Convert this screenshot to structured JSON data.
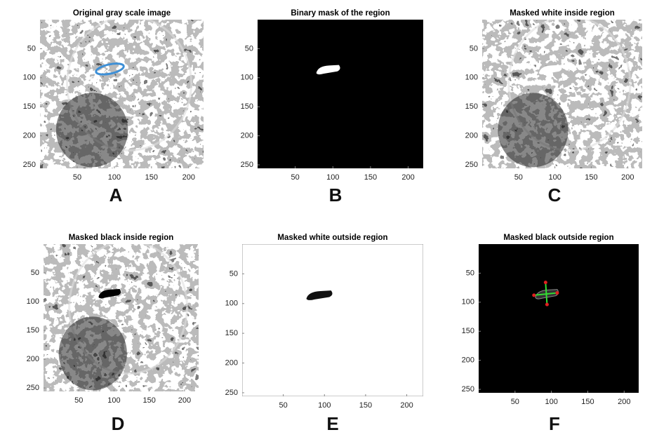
{
  "axes": {
    "xlim": [
      0,
      220
    ],
    "ylim": [
      0,
      256
    ],
    "xticks": [
      50,
      100,
      150,
      200
    ],
    "yticks": [
      50,
      100,
      150,
      200,
      250
    ]
  },
  "panels": [
    {
      "title": "Original gray scale image",
      "letter": "A"
    },
    {
      "title": "Binary mask of the region",
      "letter": "B"
    },
    {
      "title": "Masked white inside region",
      "letter": "C"
    },
    {
      "title": "Masked black inside region",
      "letter": "D"
    },
    {
      "title": "Masked white outside region",
      "letter": "E"
    },
    {
      "title": "Masked black outside region",
      "letter": "F"
    }
  ]
}
